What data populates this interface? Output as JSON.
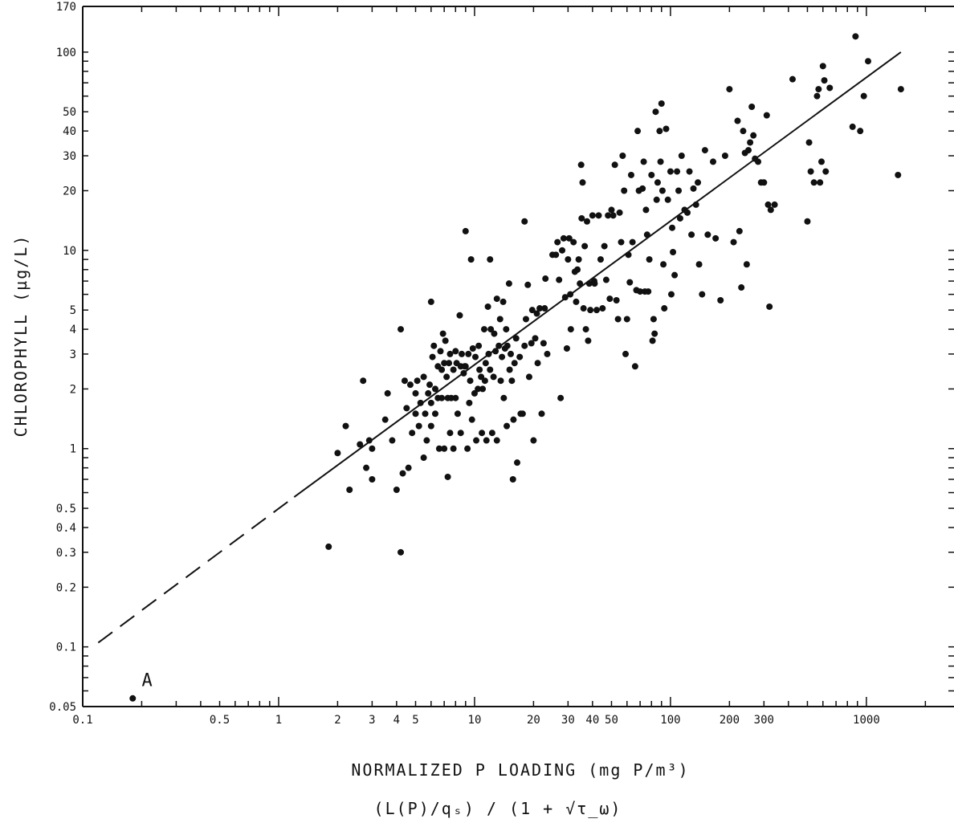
{
  "chart_data": {
    "type": "scatter",
    "ylabel": "CHLOROPHYLL (µg/L)",
    "xlabel": "NORMALIZED P LOADING (mg P/m³)",
    "xlabel_formula": "(L(P)/qₛ) / (1 + √τ_ω)",
    "x_scale": "log",
    "y_scale": "log",
    "xlim": [
      0.1,
      2800
    ],
    "ylim": [
      0.05,
      170
    ],
    "x_ticks": [
      0.1,
      0.5,
      1,
      2,
      3,
      4,
      5,
      10,
      20,
      30,
      40,
      50,
      100,
      200,
      300,
      1000
    ],
    "x_tick_labels": [
      "0.1",
      "0.5",
      "1",
      "2",
      "3",
      "4",
      "5",
      "10",
      "20",
      "30",
      "40",
      "50",
      "100",
      "200",
      "300",
      "1000"
    ],
    "y_ticks": [
      0.05,
      0.1,
      0.2,
      0.3,
      0.4,
      0.5,
      1,
      2,
      3,
      4,
      5,
      10,
      20,
      30,
      40,
      50,
      100,
      170
    ],
    "y_tick_labels": [
      "0.05",
      "0.1",
      "0.2",
      "0.3",
      "0.4",
      "0.5",
      "1",
      "2",
      "3",
      "4",
      "5",
      "10",
      "20",
      "30",
      "40",
      "50",
      "100",
      "170"
    ],
    "annotations": [
      {
        "text": "A",
        "x": 0.2,
        "y": 0.06
      }
    ],
    "regression_line": {
      "x": [
        1.2,
        1500
      ],
      "y": [
        0.57,
        100
      ],
      "style": "solid"
    },
    "extrapolation_line": {
      "x": [
        0.12,
        1.2
      ],
      "y": [
        0.105,
        0.57
      ],
      "style": "dashed"
    },
    "points": [
      [
        0.18,
        0.055
      ],
      [
        1.8,
        0.32
      ],
      [
        4.2,
        0.3
      ],
      [
        2.0,
        0.95
      ],
      [
        2.2,
        1.3
      ],
      [
        2.3,
        0.62
      ],
      [
        2.6,
        1.05
      ],
      [
        2.7,
        2.2
      ],
      [
        2.8,
        0.8
      ],
      [
        2.9,
        1.1
      ],
      [
        3.0,
        0.7
      ],
      [
        3.0,
        1.0
      ],
      [
        3.5,
        1.4
      ],
      [
        3.6,
        1.9
      ],
      [
        3.8,
        1.1
      ],
      [
        4.0,
        0.62
      ],
      [
        4.2,
        4.0
      ],
      [
        4.3,
        0.75
      ],
      [
        4.4,
        2.2
      ],
      [
        4.5,
        1.6
      ],
      [
        4.6,
        0.8
      ],
      [
        4.7,
        2.1
      ],
      [
        4.8,
        1.2
      ],
      [
        5.0,
        1.9
      ],
      [
        5.0,
        1.5
      ],
      [
        5.1,
        2.2
      ],
      [
        5.2,
        1.3
      ],
      [
        5.3,
        1.7
      ],
      [
        5.5,
        0.9
      ],
      [
        5.5,
        2.3
      ],
      [
        5.6,
        1.5
      ],
      [
        5.7,
        1.1
      ],
      [
        5.8,
        1.9
      ],
      [
        5.9,
        2.1
      ],
      [
        6.0,
        5.5
      ],
      [
        6.0,
        1.7
      ],
      [
        6.0,
        1.3
      ],
      [
        6.1,
        2.9
      ],
      [
        6.2,
        3.3
      ],
      [
        6.3,
        2.0
      ],
      [
        6.3,
        1.5
      ],
      [
        6.5,
        1.8
      ],
      [
        6.5,
        2.6
      ],
      [
        6.6,
        1.0
      ],
      [
        6.7,
        3.1
      ],
      [
        6.8,
        2.5
      ],
      [
        6.8,
        1.8
      ],
      [
        6.9,
        3.8
      ],
      [
        7.0,
        1.0
      ],
      [
        7.0,
        2.7
      ],
      [
        7.1,
        3.5
      ],
      [
        7.2,
        2.3
      ],
      [
        7.3,
        0.72
      ],
      [
        7.3,
        1.8
      ],
      [
        7.4,
        2.7
      ],
      [
        7.5,
        3.0
      ],
      [
        7.5,
        1.2
      ],
      [
        7.6,
        1.8
      ],
      [
        7.8,
        2.5
      ],
      [
        7.8,
        1.0
      ],
      [
        8.0,
        3.1
      ],
      [
        8.0,
        1.8
      ],
      [
        8.1,
        2.7
      ],
      [
        8.2,
        1.5
      ],
      [
        8.4,
        4.7
      ],
      [
        8.5,
        2.6
      ],
      [
        8.5,
        1.2
      ],
      [
        8.6,
        3.0
      ],
      [
        8.8,
        2.4
      ],
      [
        8.9,
        2.6
      ],
      [
        9.0,
        12.5
      ],
      [
        9.0,
        2.6
      ],
      [
        9.2,
        1.0
      ],
      [
        9.3,
        3.0
      ],
      [
        9.4,
        1.7
      ],
      [
        9.5,
        2.2
      ],
      [
        9.6,
        9.0
      ],
      [
        9.7,
        1.4
      ],
      [
        9.8,
        3.2
      ],
      [
        10.0,
        1.9
      ],
      [
        10.1,
        2.9
      ],
      [
        10.2,
        1.1
      ],
      [
        10.4,
        2.0
      ],
      [
        10.5,
        3.3
      ],
      [
        10.6,
        2.5
      ],
      [
        10.8,
        2.3
      ],
      [
        10.9,
        1.2
      ],
      [
        11.0,
        2.0
      ],
      [
        11.2,
        4.0
      ],
      [
        11.3,
        2.2
      ],
      [
        11.4,
        2.7
      ],
      [
        11.5,
        1.1
      ],
      [
        11.7,
        5.2
      ],
      [
        11.8,
        3.0
      ],
      [
        12.0,
        9.0
      ],
      [
        12.0,
        2.5
      ],
      [
        12.1,
        4.0
      ],
      [
        12.3,
        1.2
      ],
      [
        12.5,
        2.3
      ],
      [
        12.6,
        3.8
      ],
      [
        12.8,
        3.1
      ],
      [
        13.0,
        5.7
      ],
      [
        13.0,
        1.1
      ],
      [
        13.3,
        3.3
      ],
      [
        13.5,
        4.5
      ],
      [
        13.6,
        2.2
      ],
      [
        13.8,
        2.9
      ],
      [
        14.0,
        5.5
      ],
      [
        14.1,
        1.8
      ],
      [
        14.3,
        3.2
      ],
      [
        14.5,
        4.0
      ],
      [
        14.6,
        1.3
      ],
      [
        14.7,
        3.3
      ],
      [
        15.0,
        6.8
      ],
      [
        15.1,
        2.5
      ],
      [
        15.3,
        3.0
      ],
      [
        15.5,
        2.2
      ],
      [
        15.7,
        0.7
      ],
      [
        15.8,
        1.4
      ],
      [
        16.0,
        2.7
      ],
      [
        16.3,
        3.6
      ],
      [
        16.5,
        0.85
      ],
      [
        17.0,
        2.9
      ],
      [
        17.2,
        1.5
      ],
      [
        17.6,
        1.5
      ],
      [
        18.0,
        3.3
      ],
      [
        18.0,
        14.0
      ],
      [
        18.3,
        4.5
      ],
      [
        18.7,
        6.7
      ],
      [
        19.0,
        2.3
      ],
      [
        19.5,
        3.4
      ],
      [
        19.7,
        5.0
      ],
      [
        20.0,
        1.1
      ],
      [
        20.4,
        3.6
      ],
      [
        20.8,
        4.8
      ],
      [
        21.0,
        2.7
      ],
      [
        21.5,
        5.1
      ],
      [
        22.0,
        1.5
      ],
      [
        22.5,
        3.4
      ],
      [
        22.8,
        5.1
      ],
      [
        23.0,
        7.2
      ],
      [
        23.5,
        3.0
      ],
      [
        25.0,
        9.5
      ],
      [
        26.0,
        9.5
      ],
      [
        26.5,
        11.0
      ],
      [
        27.0,
        7.1
      ],
      [
        27.5,
        1.8
      ],
      [
        28.0,
        10.0
      ],
      [
        28.5,
        11.5
      ],
      [
        29.0,
        5.8
      ],
      [
        29.6,
        3.2
      ],
      [
        30.0,
        9.0
      ],
      [
        30.4,
        11.5
      ],
      [
        30.8,
        6.0
      ],
      [
        31.0,
        4.0
      ],
      [
        32.0,
        11.0
      ],
      [
        32.5,
        7.8
      ],
      [
        33.0,
        5.5
      ],
      [
        33.5,
        8.0
      ],
      [
        34.0,
        9.0
      ],
      [
        34.5,
        6.8
      ],
      [
        35.0,
        27.0
      ],
      [
        35.2,
        14.5
      ],
      [
        35.6,
        22.0
      ],
      [
        36.0,
        5.1
      ],
      [
        36.5,
        10.5
      ],
      [
        37.0,
        4.0
      ],
      [
        37.5,
        14.0
      ],
      [
        38.0,
        3.5
      ],
      [
        38.5,
        6.8
      ],
      [
        39.0,
        5.0
      ],
      [
        40.0,
        15.0
      ],
      [
        40.8,
        7.0
      ],
      [
        41.0,
        6.8
      ],
      [
        42.0,
        5.0
      ],
      [
        43.0,
        15.0
      ],
      [
        44.0,
        9.0
      ],
      [
        45.0,
        5.1
      ],
      [
        46.0,
        10.5
      ],
      [
        47.0,
        7.1
      ],
      [
        48.0,
        15.0
      ],
      [
        49.0,
        5.7
      ],
      [
        50.0,
        16.0
      ],
      [
        51.0,
        15.0
      ],
      [
        52.0,
        27.0
      ],
      [
        53.0,
        5.6
      ],
      [
        54.0,
        4.5
      ],
      [
        55.0,
        15.5
      ],
      [
        56.0,
        11.0
      ],
      [
        57.0,
        30.0
      ],
      [
        58.0,
        20.0
      ],
      [
        59.0,
        3.0
      ],
      [
        60.0,
        4.5
      ],
      [
        61.0,
        9.5
      ],
      [
        62.0,
        6.9
      ],
      [
        63.0,
        24.0
      ],
      [
        64.0,
        11.0
      ],
      [
        66.0,
        2.6
      ],
      [
        67.0,
        6.3
      ],
      [
        68.0,
        40.0
      ],
      [
        69.0,
        20.0
      ],
      [
        70.0,
        6.2
      ],
      [
        72.0,
        20.5
      ],
      [
        73.0,
        28.0
      ],
      [
        74.0,
        6.2
      ],
      [
        75.0,
        16.0
      ],
      [
        76.0,
        12.0
      ],
      [
        77.0,
        6.2
      ],
      [
        78.0,
        9.0
      ],
      [
        80.0,
        24.0
      ],
      [
        81.0,
        3.5
      ],
      [
        82.0,
        4.5
      ],
      [
        83.0,
        3.8
      ],
      [
        84.0,
        50.0
      ],
      [
        85.0,
        18.0
      ],
      [
        86.0,
        22.0
      ],
      [
        88.0,
        40.0
      ],
      [
        89.0,
        28.0
      ],
      [
        90.0,
        55.0
      ],
      [
        91.0,
        20.0
      ],
      [
        92.0,
        8.5
      ],
      [
        93.0,
        5.1
      ],
      [
        95.0,
        41.0
      ],
      [
        97.0,
        18.0
      ],
      [
        100.0,
        25.0
      ],
      [
        101.0,
        6.0
      ],
      [
        102.0,
        13.0
      ],
      [
        103.0,
        9.8
      ],
      [
        105.0,
        7.5
      ],
      [
        108.0,
        25.0
      ],
      [
        110.0,
        20.0
      ],
      [
        112.0,
        14.5
      ],
      [
        114.0,
        30.0
      ],
      [
        118.0,
        16.0
      ],
      [
        122.0,
        15.5
      ],
      [
        125.0,
        25.0
      ],
      [
        128.0,
        12.0
      ],
      [
        131.0,
        20.5
      ],
      [
        135.0,
        17.0
      ],
      [
        138.0,
        22.0
      ],
      [
        140.0,
        8.5
      ],
      [
        145.0,
        6.0
      ],
      [
        150.0,
        32.0
      ],
      [
        155.0,
        12.0
      ],
      [
        165.0,
        28.0
      ],
      [
        170.0,
        11.5
      ],
      [
        180.0,
        5.6
      ],
      [
        190.0,
        30.0
      ],
      [
        200.0,
        65.0
      ],
      [
        210.0,
        11.0
      ],
      [
        220.0,
        45.0
      ],
      [
        225.0,
        12.5
      ],
      [
        230.0,
        6.5
      ],
      [
        235.0,
        40.0
      ],
      [
        240.0,
        31.0
      ],
      [
        245.0,
        8.5
      ],
      [
        250.0,
        32.0
      ],
      [
        255.0,
        35.0
      ],
      [
        260.0,
        53.0
      ],
      [
        265.0,
        38.0
      ],
      [
        270.0,
        29.0
      ],
      [
        280.0,
        28.0
      ],
      [
        290.0,
        22.0
      ],
      [
        300.0,
        22.0
      ],
      [
        310.0,
        48.0
      ],
      [
        315.0,
        17.0
      ],
      [
        320.0,
        5.2
      ],
      [
        325.0,
        16.0
      ],
      [
        340.0,
        17.0
      ],
      [
        420.0,
        73.0
      ],
      [
        500.0,
        14.0
      ],
      [
        510.0,
        35.0
      ],
      [
        520.0,
        25.0
      ],
      [
        540.0,
        22.0
      ],
      [
        560.0,
        60.0
      ],
      [
        570.0,
        65.0
      ],
      [
        580.0,
        22.0
      ],
      [
        590.0,
        28.0
      ],
      [
        600.0,
        85.0
      ],
      [
        610.0,
        72.0
      ],
      [
        620.0,
        25.0
      ],
      [
        650.0,
        66.0
      ],
      [
        850.0,
        42.0
      ],
      [
        880.0,
        120.0
      ],
      [
        930.0,
        40.0
      ],
      [
        970.0,
        60.0
      ],
      [
        1020.0,
        90.0
      ],
      [
        1450.0,
        24.0
      ],
      [
        1500.0,
        65.0
      ]
    ]
  }
}
